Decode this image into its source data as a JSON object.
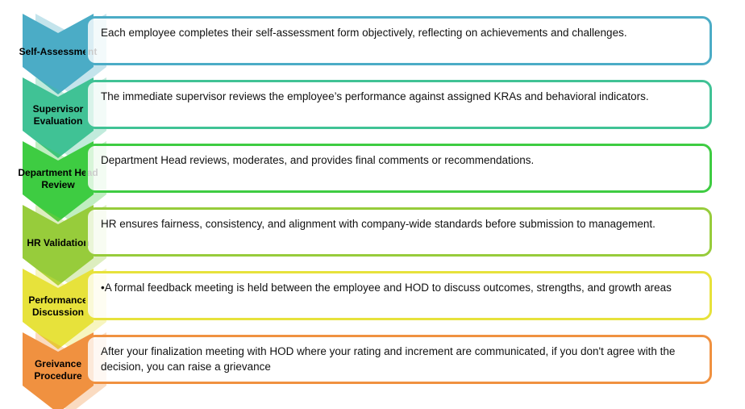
{
  "diagram": {
    "type": "vertical-chevron-process-list",
    "background_color": "#ffffff",
    "steps": [
      {
        "label": "Self-Assessment",
        "description": "Each employee completes their self-assessment form objectively, reflecting on achievements and challenges.",
        "color": "#4BACC6"
      },
      {
        "label": "Supervisor Evaluation",
        "description": "The immediate supervisor reviews the employee’s performance against assigned KRAs and behavioral indicators.",
        "color": "#40C295"
      },
      {
        "label": "Department Head Review",
        "description": "Department Head reviews, moderates, and provides final comments or recommendations.",
        "color": "#3ECC42"
      },
      {
        "label": "HR Validation",
        "description": "HR ensures fairness, consistency, and alignment with company-wide standards before submission to management.",
        "color": "#97CC3B"
      },
      {
        "label": "Performance Discussion",
        "description": "•A formal feedback meeting is held between the employee and HOD to discuss outcomes, strengths, and growth areas",
        "color": "#E7E23B"
      },
      {
        "label": "Greivance Procedure",
        "description": "After your finalization meeting with HOD where your rating and increment are communicated, if you don't agree with the decision, you can raise a grievance",
        "color": "#F09140"
      }
    ]
  }
}
